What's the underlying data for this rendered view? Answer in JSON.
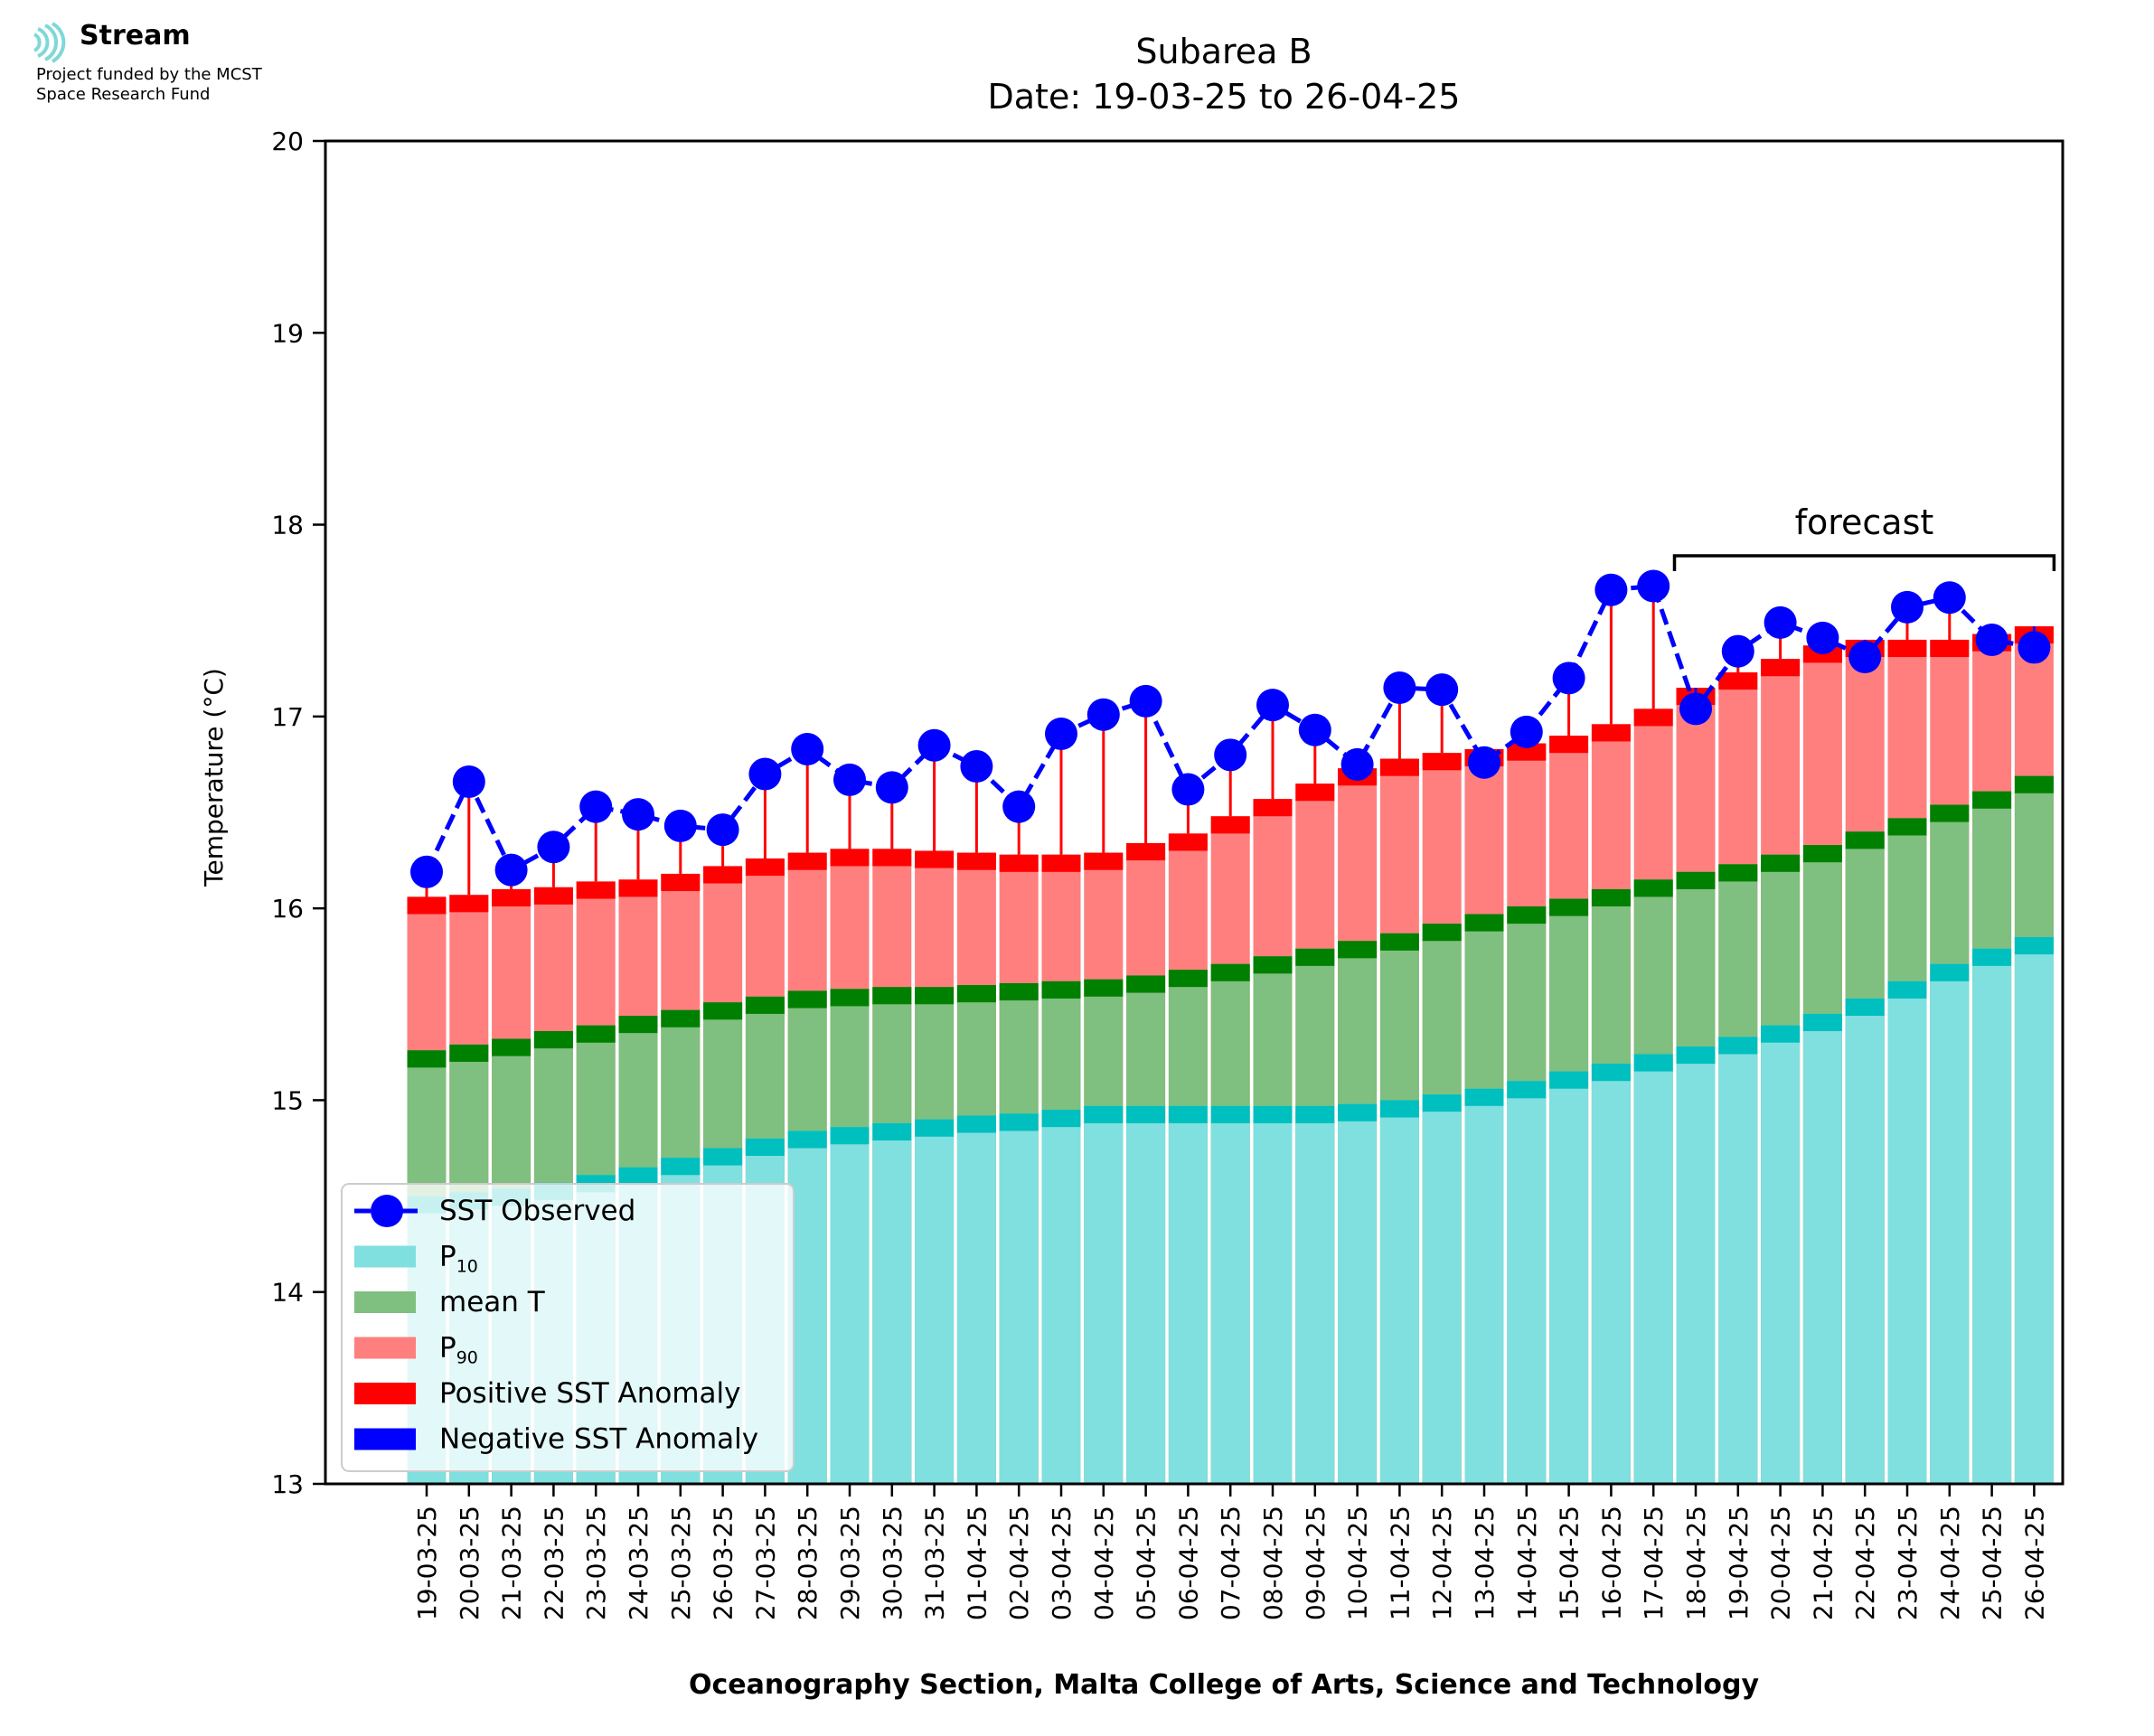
{
  "header": {
    "logo_name": "Stream",
    "logo_line1": "Project funded by the MCST",
    "logo_line2": "Space Research Fund"
  },
  "chart_data": {
    "type": "bar",
    "title": "Subarea B",
    "subtitle": "Date: 19-03-25 to 26-04-25",
    "xlabel": "Oceanography Section, Malta College of Arts, Science and Technology",
    "ylabel": "Temperature (°C)",
    "ylim": [
      13,
      20
    ],
    "yticks": [
      13,
      14,
      15,
      16,
      17,
      18,
      19,
      20
    ],
    "categories": [
      "19-03-25",
      "20-03-25",
      "21-03-25",
      "22-03-25",
      "23-03-25",
      "24-03-25",
      "25-03-25",
      "26-03-25",
      "27-03-25",
      "28-03-25",
      "29-03-25",
      "30-03-25",
      "31-03-25",
      "01-04-25",
      "02-04-25",
      "03-04-25",
      "04-04-25",
      "05-04-25",
      "06-04-25",
      "07-04-25",
      "08-04-25",
      "09-04-25",
      "10-04-25",
      "11-04-25",
      "12-04-25",
      "13-04-25",
      "14-04-25",
      "15-04-25",
      "16-04-25",
      "17-04-25",
      "18-04-25",
      "19-04-25",
      "20-04-25",
      "21-04-25",
      "22-04-25",
      "23-04-25",
      "24-04-25",
      "25-04-25",
      "26-04-25"
    ],
    "series": [
      {
        "name": "P10",
        "type": "bar",
        "values": [
          14.5,
          14.52,
          14.54,
          14.57,
          14.61,
          14.65,
          14.7,
          14.75,
          14.8,
          14.84,
          14.86,
          14.88,
          14.9,
          14.92,
          14.93,
          14.95,
          14.97,
          14.97,
          14.97,
          14.97,
          14.97,
          14.97,
          14.98,
          15.0,
          15.03,
          15.06,
          15.1,
          15.15,
          15.19,
          15.24,
          15.28,
          15.33,
          15.39,
          15.45,
          15.53,
          15.62,
          15.71,
          15.79,
          15.85
        ]
      },
      {
        "name": "mean T",
        "type": "bar",
        "values": [
          15.26,
          15.29,
          15.32,
          15.36,
          15.39,
          15.44,
          15.47,
          15.51,
          15.54,
          15.57,
          15.58,
          15.59,
          15.59,
          15.6,
          15.61,
          15.62,
          15.63,
          15.65,
          15.68,
          15.71,
          15.75,
          15.79,
          15.83,
          15.87,
          15.92,
          15.97,
          16.01,
          16.05,
          16.1,
          16.15,
          16.19,
          16.23,
          16.28,
          16.33,
          16.4,
          16.47,
          16.54,
          16.61,
          16.69
        ]
      },
      {
        "name": "P90",
        "type": "bar",
        "values": [
          16.06,
          16.07,
          16.1,
          16.11,
          16.14,
          16.15,
          16.18,
          16.22,
          16.26,
          16.29,
          16.31,
          16.31,
          16.3,
          16.29,
          16.28,
          16.28,
          16.29,
          16.34,
          16.39,
          16.48,
          16.57,
          16.65,
          16.73,
          16.78,
          16.81,
          16.83,
          16.86,
          16.9,
          16.96,
          17.04,
          17.15,
          17.23,
          17.3,
          17.37,
          17.4,
          17.4,
          17.4,
          17.43,
          17.47
        ]
      },
      {
        "name": "SST Observed",
        "type": "line",
        "color": "#0000ff",
        "values": [
          16.19,
          16.66,
          16.2,
          16.32,
          16.53,
          16.49,
          16.43,
          16.41,
          16.7,
          16.83,
          16.67,
          16.63,
          16.85,
          16.74,
          16.53,
          16.91,
          17.01,
          17.08,
          16.62,
          16.8,
          17.06,
          16.93,
          16.75,
          17.15,
          17.14,
          16.76,
          16.92,
          17.2,
          17.66,
          17.68,
          17.04,
          17.34,
          17.49,
          17.41,
          17.31,
          17.57,
          17.62,
          17.4,
          17.36
        ]
      }
    ],
    "legend": {
      "position": "lower-left",
      "entries": [
        {
          "label": "SST Observed",
          "color": "#0000ff",
          "kind": "line-marker"
        },
        {
          "label": "P",
          "sub": "10",
          "color": "#80dfdf",
          "kind": "patch"
        },
        {
          "label": "mean T",
          "color": "#7fbf7f",
          "kind": "patch"
        },
        {
          "label": "P",
          "sub": "90",
          "color": "#ff7f7f",
          "kind": "patch"
        },
        {
          "label": "Positive SST Anomaly",
          "color": "#ff0000",
          "kind": "patch"
        },
        {
          "label": "Negative SST Anomaly",
          "color": "#0000ff",
          "kind": "patch"
        }
      ]
    },
    "annotation": {
      "text": "forecast",
      "start_category": "18-04-25",
      "end_category": "26-04-25"
    },
    "colors": {
      "p10": "#80dfdf",
      "p10_cap": "#00bfbf",
      "mean": "#7fbf7f",
      "mean_cap": "#008000",
      "p90": "#ff7f7f",
      "p90_cap": "#ff0000",
      "positive_anomaly": "#ff0000",
      "negative_anomaly": "#0000ff",
      "sst": "#0000ff"
    }
  }
}
